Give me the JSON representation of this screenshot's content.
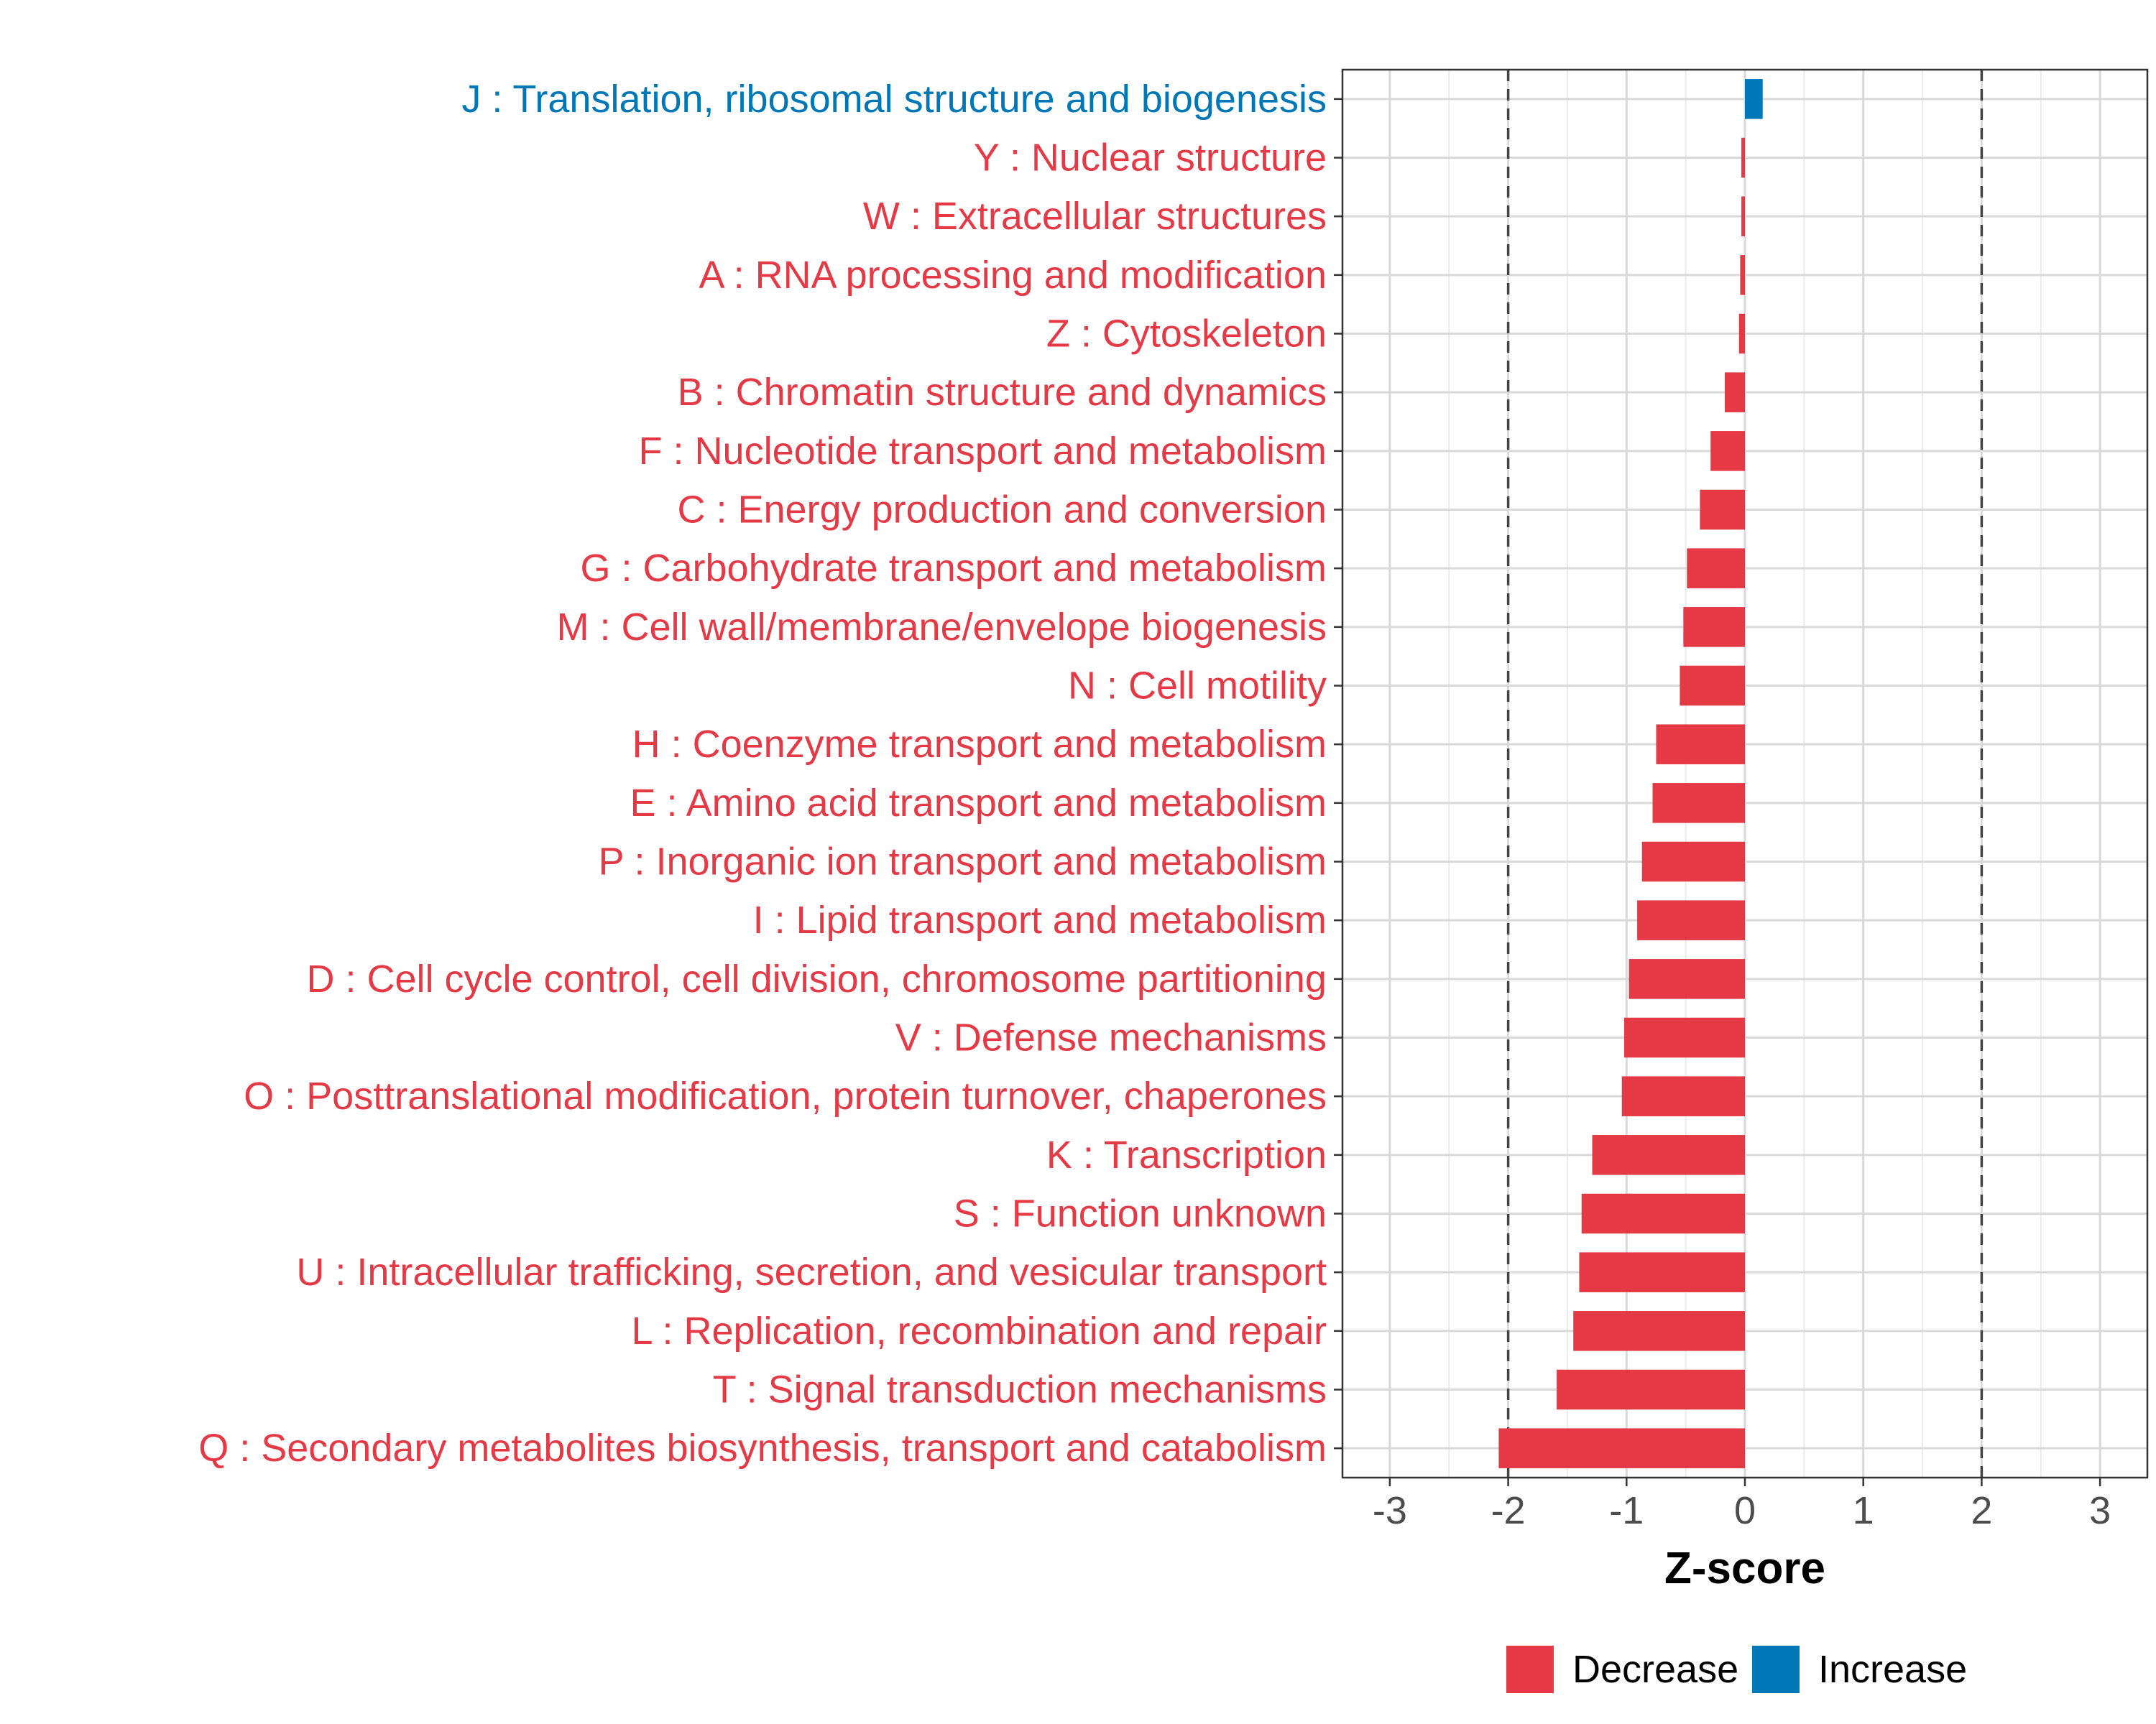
{
  "chart_data": {
    "type": "bar",
    "orientation": "horizontal",
    "xlabel": "Z-score",
    "ylabel": "",
    "xlim": [
      -3.4,
      3.4
    ],
    "xticks": [
      -3,
      -2,
      -1,
      0,
      1,
      2,
      3
    ],
    "reference_lines": [
      -2,
      2
    ],
    "grid": true,
    "legend_position": "bottom",
    "colors": {
      "Decrease": "#E63946",
      "Increase": "#0077B6"
    },
    "legend": [
      {
        "label": "Decrease",
        "color": "#E63946"
      },
      {
        "label": "Increase",
        "color": "#0077B6"
      }
    ],
    "categories": [
      "J : Translation, ribosomal structure and biogenesis",
      "Y : Nuclear structure",
      "W : Extracellular structures",
      "A : RNA processing and modification",
      "Z : Cytoskeleton",
      "B : Chromatin structure and dynamics",
      "F : Nucleotide transport and metabolism",
      "C : Energy production and conversion",
      "G : Carbohydrate transport and metabolism",
      "M : Cell wall/membrane/envelope biogenesis",
      "N : Cell motility",
      "H : Coenzyme transport and metabolism",
      "E : Amino acid transport and metabolism",
      "P : Inorganic ion transport and metabolism",
      "I : Lipid transport and metabolism",
      "D : Cell cycle control, cell division, chromosome partitioning",
      "V : Defense mechanisms",
      "O : Posttranslational modification, protein turnover, chaperones",
      "K : Transcription",
      "S : Function unknown",
      "U : Intracellular trafficking, secretion, and vesicular transport",
      "L : Replication, recombination and repair",
      "T : Signal transduction mechanisms",
      "Q : Secondary metabolites biosynthesis, transport and catabolism"
    ],
    "values": [
      0.15,
      -0.03,
      -0.03,
      -0.04,
      -0.05,
      -0.17,
      -0.29,
      -0.38,
      -0.49,
      -0.52,
      -0.55,
      -0.75,
      -0.78,
      -0.87,
      -0.91,
      -0.98,
      -1.02,
      -1.04,
      -1.29,
      -1.38,
      -1.4,
      -1.45,
      -1.59,
      -2.08
    ],
    "groups": [
      "Increase",
      "Decrease",
      "Decrease",
      "Decrease",
      "Decrease",
      "Decrease",
      "Decrease",
      "Decrease",
      "Decrease",
      "Decrease",
      "Decrease",
      "Decrease",
      "Decrease",
      "Decrease",
      "Decrease",
      "Decrease",
      "Decrease",
      "Decrease",
      "Decrease",
      "Decrease",
      "Decrease",
      "Decrease",
      "Decrease",
      "Decrease"
    ]
  }
}
